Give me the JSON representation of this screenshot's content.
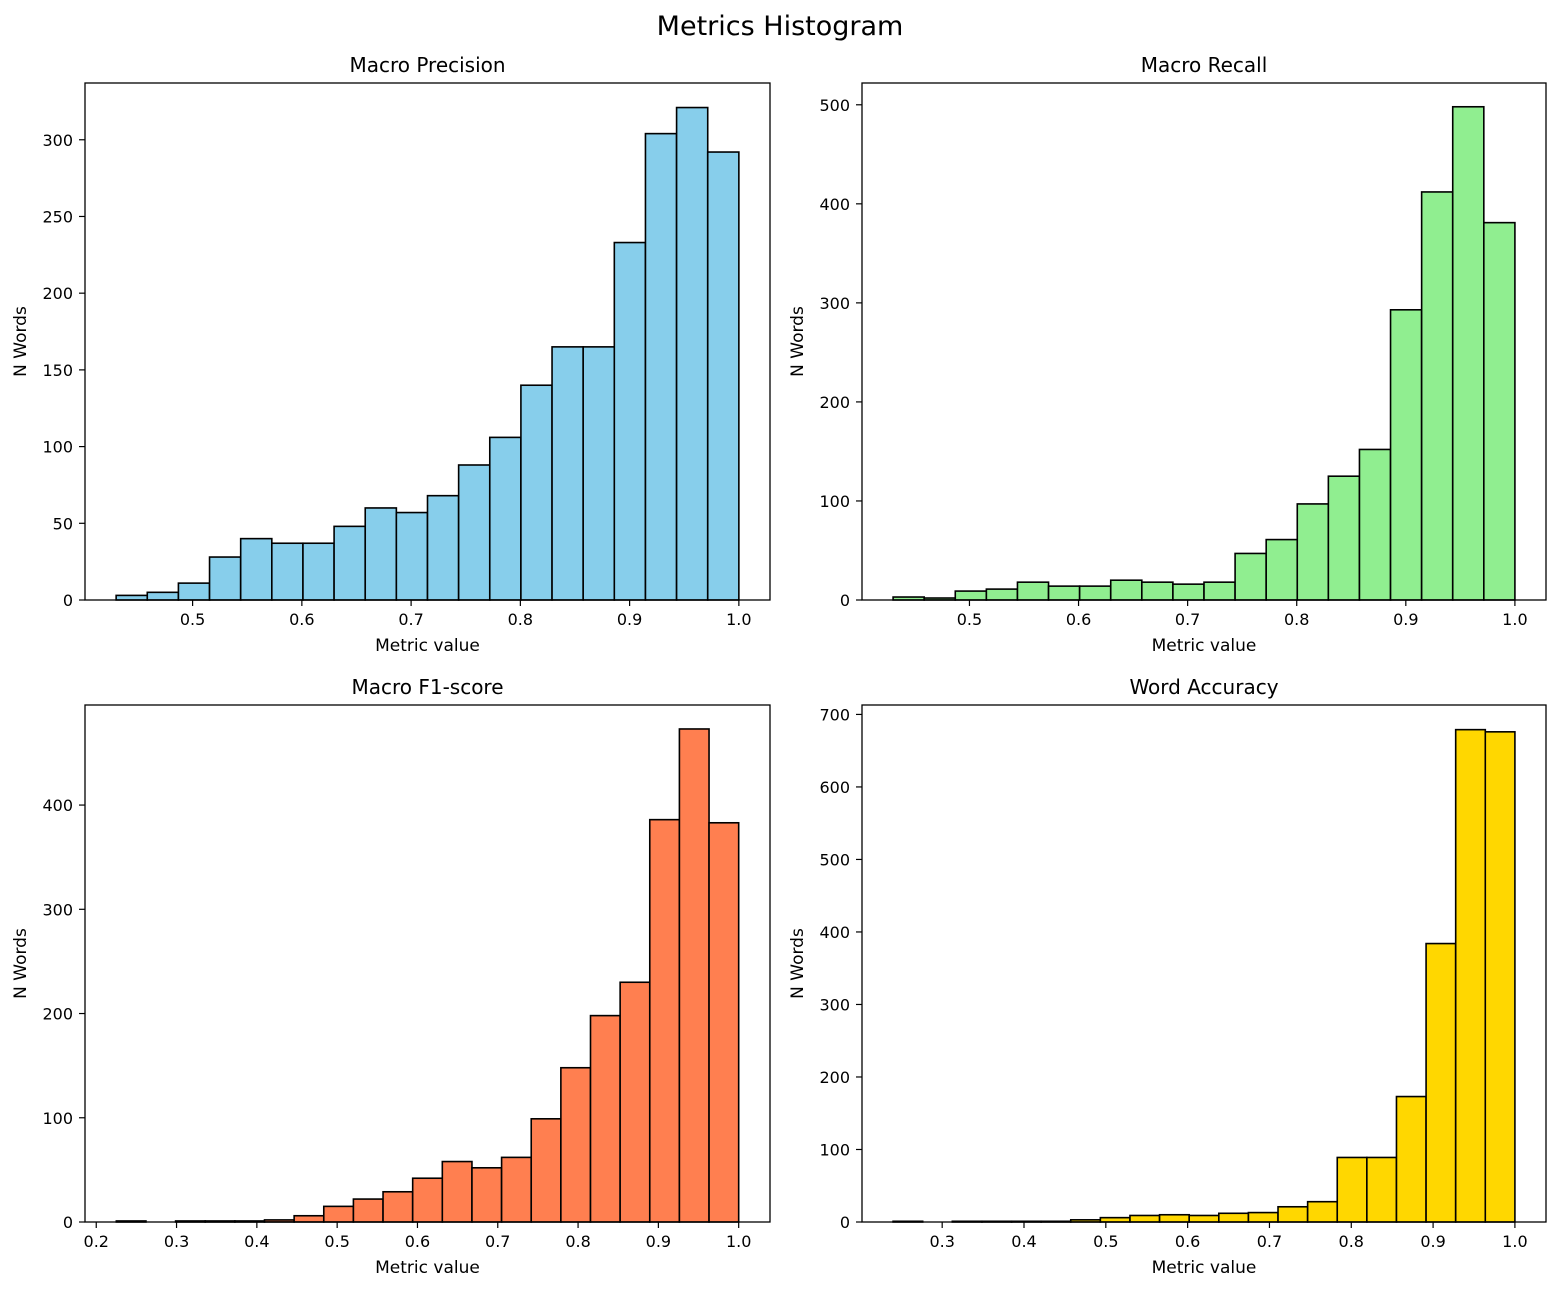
{
  "figure": {
    "title": "Metrics Histogram"
  },
  "chart_data": [
    {
      "type": "bar",
      "title": "Macro Precision",
      "xlabel": "Metric value",
      "ylabel": "N Words",
      "color": "#87ceeb",
      "bin_range": [
        0.43,
        1.0
      ],
      "values": [
        3,
        5,
        11,
        28,
        40,
        37,
        37,
        48,
        60,
        57,
        68,
        88,
        106,
        140,
        165,
        165,
        233,
        304,
        321,
        292
      ],
      "xlim": [
        0.4015,
        1.0285
      ],
      "ylim": [
        0,
        337
      ],
      "xticks": [
        0.5,
        0.6,
        0.7,
        0.8,
        0.9,
        1.0
      ],
      "xtick_labels": [
        "0.5",
        "0.6",
        "0.7",
        "0.8",
        "0.9",
        "1.0"
      ],
      "yticks": [
        0,
        50,
        100,
        150,
        200,
        250,
        300
      ],
      "ytick_labels": [
        "0",
        "50",
        "100",
        "150",
        "200",
        "250",
        "300"
      ]
    },
    {
      "type": "bar",
      "title": "Macro Recall",
      "xlabel": "Metric value",
      "ylabel": "N Words",
      "color": "#90ee90",
      "bin_range": [
        0.43,
        1.0
      ],
      "values": [
        3,
        2,
        9,
        11,
        18,
        14,
        14,
        20,
        18,
        16,
        18,
        47,
        61,
        97,
        125,
        152,
        293,
        412,
        498,
        381
      ],
      "xlim": [
        0.4015,
        1.0285
      ],
      "ylim": [
        0,
        522
      ],
      "xticks": [
        0.5,
        0.6,
        0.7,
        0.8,
        0.9,
        1.0
      ],
      "xtick_labels": [
        "0.5",
        "0.6",
        "0.7",
        "0.8",
        "0.9",
        "1.0"
      ],
      "yticks": [
        0,
        100,
        200,
        300,
        400,
        500
      ],
      "ytick_labels": [
        "0",
        "100",
        "200",
        "300",
        "400",
        "500"
      ]
    },
    {
      "type": "bar",
      "title": "Macro F1-score",
      "xlabel": "Metric value",
      "ylabel": "N Words",
      "color": "#ff7f50",
      "bin_range": [
        0.225,
        1.0
      ],
      "values": [
        1,
        0,
        1,
        1,
        1,
        2,
        6,
        15,
        22,
        29,
        42,
        58,
        52,
        62,
        99,
        148,
        198,
        230,
        386,
        473,
        383
      ],
      "xlim": [
        0.186,
        1.039
      ],
      "ylim": [
        0,
        496
      ],
      "xticks": [
        0.2,
        0.3,
        0.4,
        0.5,
        0.6,
        0.7,
        0.8,
        0.9,
        1.0
      ],
      "xtick_labels": [
        "0.2",
        "0.3",
        "0.4",
        "0.5",
        "0.6",
        "0.7",
        "0.8",
        "0.9",
        "1.0"
      ],
      "yticks": [
        0,
        100,
        200,
        300,
        400
      ],
      "ytick_labels": [
        "0",
        "100",
        "200",
        "300",
        "400"
      ]
    },
    {
      "type": "bar",
      "title": "Word Accuracy",
      "xlabel": "Metric value",
      "ylabel": "N Words",
      "color": "#ffd700",
      "bin_range": [
        0.24,
        1.0
      ],
      "values": [
        1,
        0,
        1,
        1,
        1,
        1,
        3,
        6,
        9,
        10,
        9,
        12,
        13,
        21,
        28,
        89,
        89,
        173,
        384,
        679,
        676
      ],
      "xlim": [
        0.202,
        1.038
      ],
      "ylim": [
        0,
        713
      ],
      "xticks": [
        0.3,
        0.4,
        0.5,
        0.6,
        0.7,
        0.8,
        0.9,
        1.0
      ],
      "xtick_labels": [
        "0.3",
        "0.4",
        "0.5",
        "0.6",
        "0.7",
        "0.8",
        "0.9",
        "1.0"
      ],
      "yticks": [
        0,
        100,
        200,
        300,
        400,
        500,
        600,
        700
      ],
      "ytick_labels": [
        "0",
        "100",
        "200",
        "300",
        "400",
        "500",
        "600",
        "700"
      ]
    }
  ]
}
